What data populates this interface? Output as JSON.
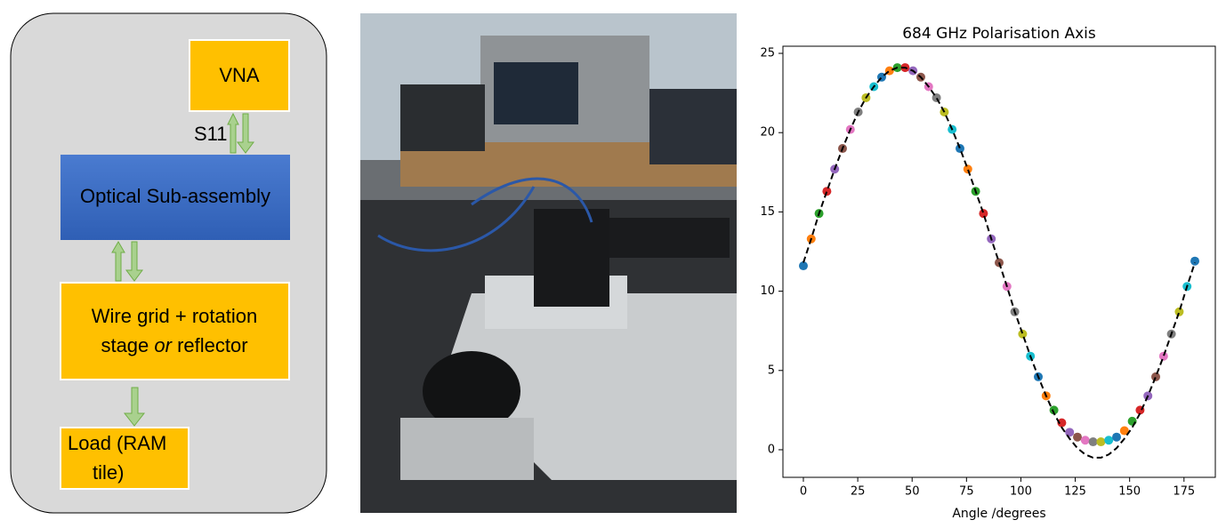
{
  "diagram": {
    "nodes": [
      {
        "label": "VNA"
      },
      {
        "label": "Optical Sub-assembly"
      },
      {
        "label_lines": [
          "Wire grid + rotation",
          "stage ",
          "or",
          " reflector"
        ]
      },
      {
        "label_lines": [
          "Load (RAM",
          "tile)"
        ]
      }
    ],
    "edge_label": "S11"
  },
  "chart_data": {
    "type": "scatter",
    "title": "684 GHz Polarisation Axis",
    "x_label": "Angle /degrees",
    "x": [
      0,
      3.6,
      7.2,
      10.8,
      14.4,
      18,
      21.6,
      25.2,
      28.8,
      32.4,
      36,
      39.6,
      43.2,
      46.8,
      50.4,
      54,
      57.6,
      61.2,
      64.8,
      68.4,
      72,
      75.6,
      79.2,
      82.8,
      86.4,
      90,
      93.6,
      97.2,
      100.8,
      104.4,
      108,
      111.6,
      115.2,
      118.8,
      122.4,
      126,
      129.6,
      133.2,
      136.8,
      140.4,
      144,
      147.6,
      151.2,
      154.8,
      158.4,
      162,
      165.6,
      169.2,
      172.8,
      176.4,
      180
    ],
    "series": [
      {
        "type": "scatter",
        "colors": [
          "#1f77b4",
          "#ff7f0e",
          "#2ca02c",
          "#d62728",
          "#9467bd",
          "#8c564b",
          "#e377c2",
          "#7f7f7f",
          "#bcbd22",
          "#17becf"
        ],
        "values": [
          11.6,
          13.3,
          14.9,
          16.3,
          17.7,
          19.0,
          20.2,
          21.3,
          22.2,
          22.9,
          23.5,
          23.9,
          24.1,
          24.1,
          23.9,
          23.5,
          22.9,
          22.2,
          21.3,
          20.2,
          19.0,
          17.7,
          16.3,
          14.9,
          13.3,
          11.8,
          10.3,
          8.7,
          7.3,
          5.9,
          4.6,
          3.4,
          2.5,
          1.7,
          1.1,
          0.8,
          0.6,
          0.5,
          0.5,
          0.6,
          0.8,
          1.2,
          1.8,
          2.5,
          3.4,
          4.6,
          5.9,
          7.3,
          8.7,
          10.3,
          11.9
        ]
      },
      {
        "type": "line",
        "color": "#000000",
        "dashed": true,
        "values": [
          11.8,
          13.3,
          14.9,
          16.3,
          17.7,
          19.0,
          20.2,
          21.3,
          22.2,
          22.9,
          23.5,
          23.9,
          24.1,
          24.1,
          23.9,
          23.5,
          22.9,
          22.2,
          21.3,
          20.2,
          19.0,
          17.7,
          16.3,
          14.9,
          13.3,
          11.8,
          10.3,
          8.7,
          7.3,
          5.9,
          4.6,
          3.4,
          2.3,
          1.4,
          0.7,
          0.1,
          -0.3,
          -0.5,
          -0.5,
          -0.3,
          0.1,
          0.7,
          1.4,
          2.3,
          3.4,
          4.6,
          5.9,
          7.3,
          8.7,
          10.3,
          11.8
        ]
      }
    ],
    "xlim": [
      -9.4,
      189.4
    ],
    "ylim": [
      -1.74,
      25.45
    ],
    "xticks": [
      0,
      25,
      50,
      75,
      100,
      125,
      150,
      175
    ],
    "yticks": [
      0,
      5,
      10,
      15,
      20,
      25
    ]
  }
}
